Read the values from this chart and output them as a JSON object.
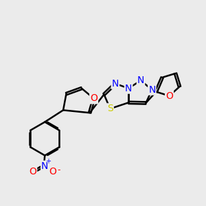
{
  "bg_color": "#ebebeb",
  "bond_color": "#000000",
  "bond_width": 1.8,
  "atom_colors": {
    "N": "#0000ff",
    "O": "#ff0000",
    "S": "#cccc00",
    "C": "#000000"
  },
  "font_size_atom": 10
}
